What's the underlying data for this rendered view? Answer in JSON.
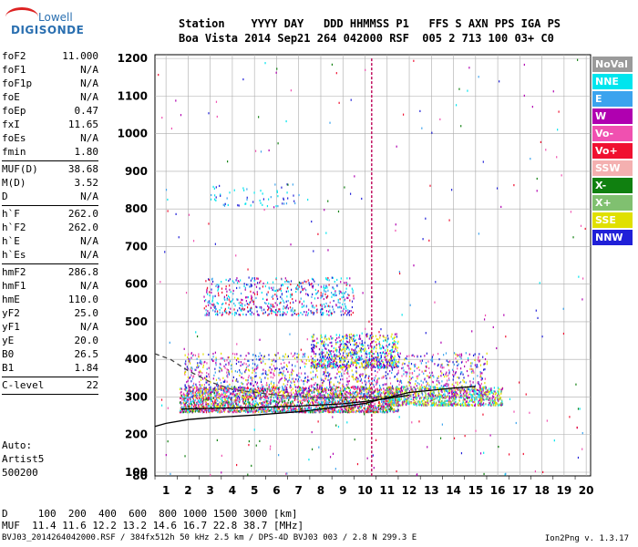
{
  "logo": {
    "line1": "Lowell",
    "line2": "DIGISONDE"
  },
  "header": {
    "line1": "Station    YYYY DAY   DDD HHMMSS P1   FFS S AXN PPS IGA PS",
    "line2": "Boa Vista 2014 Sep21 264 042000 RSF  005 2 713 100 03+ C0"
  },
  "params": [
    {
      "k": "foF2",
      "v": "11.000"
    },
    {
      "k": "foF1",
      "v": "N/A"
    },
    {
      "k": "foF1p",
      "v": "N/A"
    },
    {
      "k": "foE",
      "v": "N/A"
    },
    {
      "k": "foEp",
      "v": "0.47"
    },
    {
      "k": "fxI",
      "v": "11.65"
    },
    {
      "k": "foEs",
      "v": "N/A"
    },
    {
      "k": "fmin",
      "v": "1.80"
    },
    {
      "sep": true
    },
    {
      "k": "MUF(D)",
      "v": "38.68"
    },
    {
      "k": "M(D)",
      "v": "3.52"
    },
    {
      "k": "D",
      "v": "N/A"
    },
    {
      "sep": true
    },
    {
      "k": "h`F",
      "v": "262.0"
    },
    {
      "k": "h`F2",
      "v": "262.0"
    },
    {
      "k": "h`E",
      "v": "N/A"
    },
    {
      "k": "h`Es",
      "v": "N/A"
    },
    {
      "sep": true
    },
    {
      "k": "hmF2",
      "v": "286.8"
    },
    {
      "k": "hmF1",
      "v": "N/A"
    },
    {
      "k": "hmE",
      "v": "110.0"
    },
    {
      "k": "yF2",
      "v": "25.0"
    },
    {
      "k": "yF1",
      "v": "N/A"
    },
    {
      "k": "yE",
      "v": "20.0"
    },
    {
      "k": "B0",
      "v": "26.5"
    },
    {
      "k": "B1",
      "v": "1.84"
    },
    {
      "sep": true
    },
    {
      "k": "C-level",
      "v": "22"
    },
    {
      "sep": true
    }
  ],
  "auto": {
    "label": "Auto:",
    "artist": "Artist5",
    "number": "500200"
  },
  "legend": [
    {
      "label": "NoVal",
      "color": "#9a9a9a"
    },
    {
      "label": "NNE",
      "color": "#00e5ee"
    },
    {
      "label": "E",
      "color": "#3ba3ee"
    },
    {
      "label": "W",
      "color": "#b000b0"
    },
    {
      "label": "Vo-",
      "color": "#f050b0"
    },
    {
      "label": "Vo+",
      "color": "#f01030"
    },
    {
      "label": "SSW",
      "color": "#f4b0b0"
    },
    {
      "label": "X-",
      "color": "#108010"
    },
    {
      "label": "X+",
      "color": "#80c070"
    },
    {
      "label": "SSE",
      "color": "#e0e000"
    },
    {
      "label": "NNW",
      "color": "#2020d8"
    }
  ],
  "chart_data": {
    "type": "scatter",
    "xlim": [
      0.5,
      20.2
    ],
    "ylim": [
      80,
      1210
    ],
    "x_ticks": [
      1,
      2,
      3,
      4,
      5,
      6,
      7,
      8,
      9,
      10,
      11,
      12,
      13,
      14,
      15,
      16,
      17,
      18,
      19,
      20
    ],
    "y_ticks": [
      80,
      100,
      200,
      300,
      400,
      500,
      600,
      700,
      800,
      900,
      1000,
      1100,
      1200
    ],
    "grid": true,
    "legend_placement": "right",
    "vline_x": 10.3,
    "clusters": [
      {
        "name": "F-trace",
        "x": [
          1.6,
          11.5
        ],
        "y": [
          262,
          330
        ],
        "colors": [
          "Vo+",
          "W",
          "Vo-",
          "NNE",
          "SSE",
          "X-",
          "E"
        ],
        "count": 2400
      },
      {
        "name": "F-upper",
        "x": [
          1.8,
          15.5
        ],
        "y": [
          300,
          420
        ],
        "colors": [
          "W",
          "Vo-",
          "NNW",
          "E",
          "SSE"
        ],
        "count": 1600
      },
      {
        "name": "F-east",
        "x": [
          11.0,
          16.2
        ],
        "y": [
          280,
          330
        ],
        "colors": [
          "SSE",
          "NNE",
          "X+",
          "W"
        ],
        "count": 800
      },
      {
        "name": "F-top",
        "x": [
          7.5,
          11.5
        ],
        "y": [
          380,
          470
        ],
        "colors": [
          "SSE",
          "NNW",
          "NNE",
          "W"
        ],
        "count": 700
      },
      {
        "name": "echo-600",
        "x": [
          2.7,
          9.5
        ],
        "y": [
          520,
          620
        ],
        "colors": [
          "W",
          "NNE",
          "E",
          "Vo+",
          "NNW"
        ],
        "count": 600
      },
      {
        "name": "echo-850",
        "x": [
          3.0,
          7.0
        ],
        "y": [
          810,
          870
        ],
        "colors": [
          "E",
          "NNE",
          "NNW"
        ],
        "count": 60
      },
      {
        "name": "sparse",
        "x": [
          0.6,
          20.0
        ],
        "y": [
          90,
          1200
        ],
        "colors": [
          "W",
          "NNW",
          "Vo+",
          "X-",
          "E",
          "NNE",
          "Vo-"
        ],
        "count": 260
      }
    ],
    "curves": [
      {
        "name": "profile",
        "points": [
          [
            0.5,
            222
          ],
          [
            1,
            230
          ],
          [
            2,
            240
          ],
          [
            3,
            245
          ],
          [
            5,
            252
          ],
          [
            7,
            261
          ],
          [
            9,
            275
          ],
          [
            10,
            283
          ],
          [
            11,
            298
          ],
          [
            12,
            312
          ],
          [
            13,
            318
          ],
          [
            14,
            324
          ],
          [
            15,
            328
          ]
        ]
      },
      {
        "name": "modelled-trace",
        "points": [
          [
            1.7,
            268
          ],
          [
            3,
            270
          ],
          [
            5,
            272
          ],
          [
            7,
            276
          ],
          [
            9,
            282
          ],
          [
            10,
            288
          ],
          [
            11,
            296
          ],
          [
            12,
            305
          ]
        ]
      },
      {
        "name": "dashed",
        "dashed": true,
        "points": [
          [
            0.5,
            415
          ],
          [
            1.2,
            400
          ],
          [
            2,
            370
          ],
          [
            3,
            340
          ],
          [
            4,
            320
          ],
          [
            6,
            305
          ],
          [
            8,
            298
          ],
          [
            10,
            300
          ],
          [
            11,
            302
          ]
        ]
      }
    ]
  },
  "muf_table": {
    "line1": "D     100  200  400  600  800 1000 1500 3000 [km]",
    "line2": "MUF  11.4 11.6 12.2 13.2 14.6 16.7 22.8 38.7 [MHz]"
  },
  "footer": "BVJ03_2014264042000.RSF / 384fx512h 50 kHz 2.5 km / DPS-4D BVJ03 003 / 2.8 N 299.3 E",
  "version": "Ion2Png v. 1.3.17"
}
